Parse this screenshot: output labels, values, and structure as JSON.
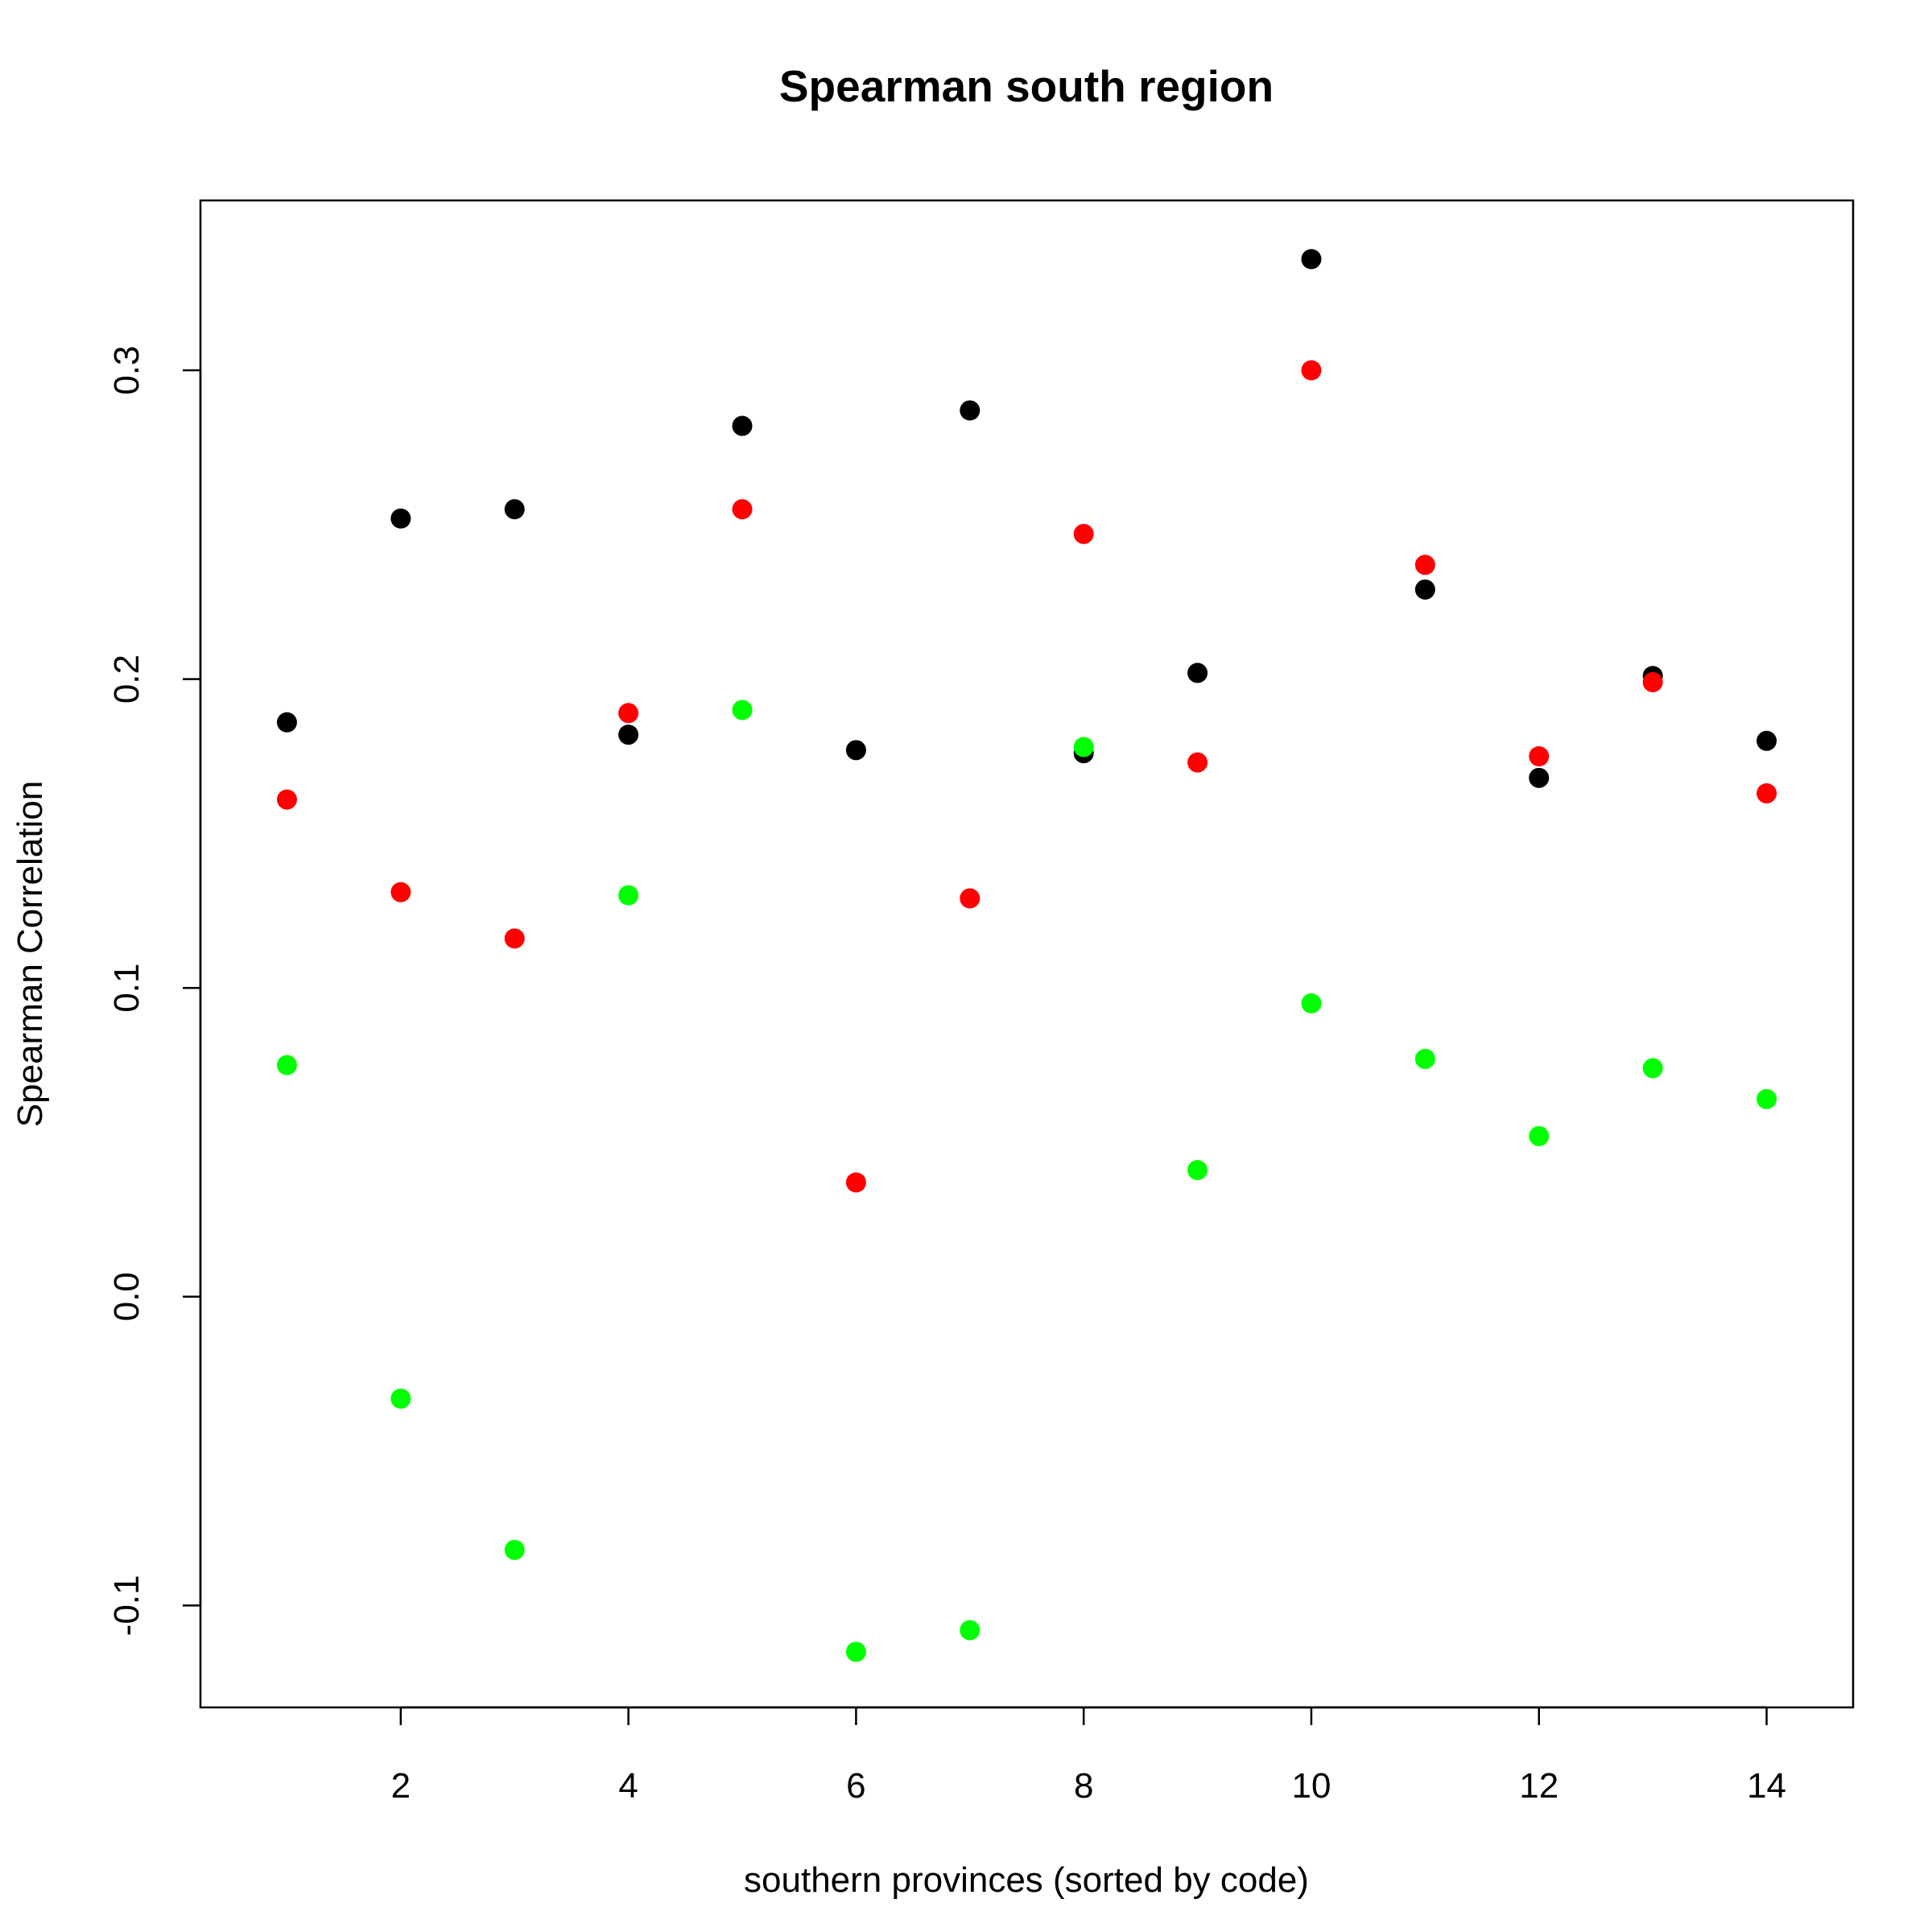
{
  "chart_data": {
    "type": "scatter",
    "title": "Spearman south region",
    "xlabel": "southern provinces (sorted by code)",
    "ylabel": "Spearman Correlation",
    "xlim": [
      0.24,
      14.76
    ],
    "ylim": [
      -0.133,
      0.355
    ],
    "x_ticks": [
      2,
      4,
      6,
      8,
      10,
      12,
      14
    ],
    "x_tick_labels": [
      "2",
      "4",
      "6",
      "8",
      "10",
      "12",
      "14"
    ],
    "y_ticks": [
      -0.1,
      0.0,
      0.1,
      0.2,
      0.3
    ],
    "y_tick_labels": [
      "-0.1",
      "0.0",
      "0.1",
      "0.2",
      "0.3"
    ],
    "grid": false,
    "legend": "none",
    "x": [
      1,
      2,
      3,
      4,
      5,
      6,
      7,
      8,
      9,
      10,
      11,
      12,
      13,
      14
    ],
    "series": [
      {
        "color": "#000000",
        "values": [
          0.186,
          0.252,
          0.255,
          0.182,
          0.282,
          0.177,
          0.287,
          0.176,
          0.202,
          0.336,
          0.229,
          0.168,
          0.201,
          0.18
        ]
      },
      {
        "color": "#ff0000",
        "values": [
          0.161,
          0.131,
          0.116,
          0.189,
          0.255,
          0.037,
          0.129,
          0.247,
          0.173,
          0.3,
          0.237,
          0.175,
          0.199,
          0.163
        ]
      },
      {
        "color": "#00ff00",
        "values": [
          0.075,
          -0.033,
          -0.082,
          0.13,
          0.19,
          -0.115,
          -0.108,
          0.178,
          0.041,
          0.095,
          0.077,
          0.052,
          0.074,
          0.064
        ]
      }
    ]
  }
}
